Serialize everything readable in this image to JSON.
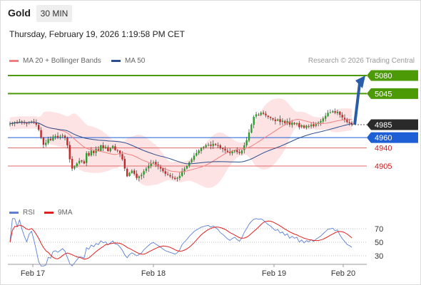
{
  "header": {
    "instrument": "Gold",
    "timeframe": "30 MIN",
    "timestamp": "Thursday, February 19, 2026 1:19:58 PM CET"
  },
  "legend_main": [
    {
      "label": "MA 20 + Bollinger Bands",
      "color": "#f08080"
    },
    {
      "label": "MA 50",
      "color": "#2b4e8c"
    }
  ],
  "credit": "Research © 2026 Trading Central",
  "legend_rsi": [
    {
      "label": "RSI",
      "color": "#5b7fd4"
    },
    {
      "label": "9MA",
      "color": "#e02020"
    }
  ],
  "colors": {
    "target": "#4c9a06",
    "pivot": "#1f5fd6",
    "support": "#e06a6a",
    "current": "#2a2a2a",
    "arrow": "#2a5da8"
  },
  "chart_data": {
    "type": "candlestick",
    "price_range": [
      4873,
      5095
    ],
    "x_labels": [
      "Feb 17",
      "Feb 18",
      "Feb 19",
      "Feb 20"
    ],
    "levels": [
      {
        "label": "5080",
        "value": 5080,
        "kind": "target"
      },
      {
        "label": "5045",
        "value": 5045,
        "kind": "target"
      },
      {
        "label": "4985",
        "value": 4985,
        "kind": "current"
      },
      {
        "label": "4960",
        "value": 4960,
        "kind": "pivot"
      },
      {
        "label": "4940",
        "value": 4940,
        "kind": "support"
      },
      {
        "label": "4905",
        "value": 4905,
        "kind": "support"
      }
    ],
    "close": [
      4987,
      4988,
      4990,
      4989,
      4991,
      4990,
      4989,
      4988,
      4990,
      4991,
      4989,
      4985,
      4975,
      4960,
      4946,
      4950,
      4957,
      4955,
      4962,
      4963,
      4960,
      4962,
      4964,
      4960,
      4945,
      4918,
      4900,
      4905,
      4910,
      4915,
      4914,
      4910,
      4930,
      4925,
      4935,
      4930,
      4938,
      4935,
      4945,
      4940,
      4942,
      4934,
      4939,
      4944,
      4936,
      4935,
      4928,
      4918,
      4900,
      4885,
      4892,
      4896,
      4890,
      4882,
      4885,
      4888,
      4895,
      4900,
      4905,
      4910,
      4912,
      4908,
      4904,
      4900,
      4895,
      4890,
      4888,
      4885,
      4883,
      4880,
      4882,
      4886,
      4895,
      4900,
      4905,
      4912,
      4918,
      4925,
      4930,
      4935,
      4940,
      4942,
      4945,
      4946,
      4944,
      4948,
      4946,
      4944,
      4940,
      4938,
      4935,
      4932,
      4930,
      4933,
      4935,
      4932,
      4930,
      4935,
      4945,
      4955,
      4970,
      4985,
      5000,
      5005,
      5004,
      5008,
      5006,
      5003,
      5000,
      4998,
      4995,
      4992,
      4995,
      4990,
      4993,
      4988,
      4992,
      4985,
      4989,
      4986,
      4988,
      4980,
      4984,
      4979,
      4983,
      4981,
      4985,
      4982,
      4986,
      4989,
      4992,
      4997,
      5002,
      5008,
      5009,
      5011,
      5008,
      5010,
      5004,
      4999,
      4995,
      4990,
      4988,
      4985
    ],
    "rsi": {
      "range": [
        10,
        90
      ],
      "ticks": [
        70,
        50,
        30
      ]
    }
  }
}
